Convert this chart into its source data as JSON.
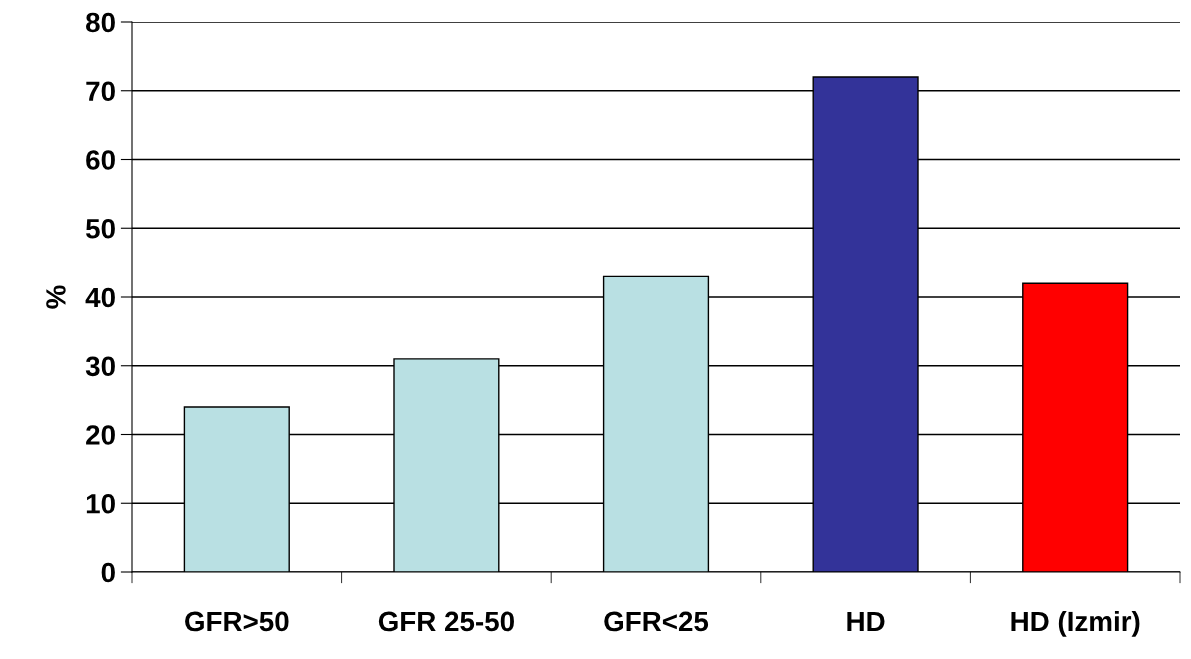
{
  "chart_data": {
    "type": "bar",
    "ylabel": "%",
    "categories": [
      "GFR>50",
      "GFR 25-50",
      "GFR<25",
      "HD",
      "HD (Izmir)"
    ],
    "values": [
      24,
      31,
      43,
      72,
      42
    ],
    "colors": [
      "#b9e0e3",
      "#b9e0e3",
      "#b9e0e3",
      "#333399",
      "#ff0000"
    ],
    "ylim": [
      0,
      80
    ],
    "yticks": [
      0,
      10,
      20,
      30,
      40,
      50,
      60,
      70,
      80
    ],
    "grid": "y"
  }
}
